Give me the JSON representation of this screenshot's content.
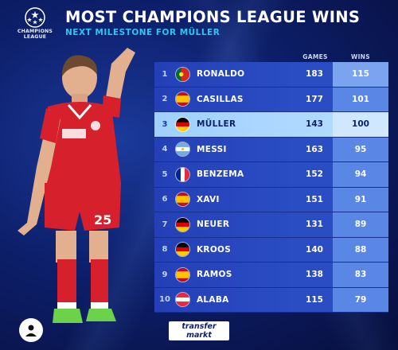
{
  "header": {
    "logo_text_line1": "CHAMPIONS",
    "logo_text_line2": "LEAGUE",
    "title": "MOST CHAMPIONS LEAGUE WINS",
    "subtitle": "NEXT MILESTONE FOR MÜLLER"
  },
  "columns": {
    "games": "GAMES",
    "wins": "WINS"
  },
  "rows": [
    {
      "rank": "1",
      "flag": "portugal-flag-icon",
      "name": "RONALDO",
      "games": "183",
      "wins": "115"
    },
    {
      "rank": "2",
      "flag": "spain-flag-icon",
      "name": "CASILLAS",
      "games": "177",
      "wins": "101"
    },
    {
      "rank": "3",
      "flag": "germany-flag-icon",
      "name": "MÜLLER",
      "games": "143",
      "wins": "100"
    },
    {
      "rank": "4",
      "flag": "argentina-flag-icon",
      "name": "MESSI",
      "games": "163",
      "wins": "95"
    },
    {
      "rank": "5",
      "flag": "france-flag-icon",
      "name": "BENZEMA",
      "games": "152",
      "wins": "94"
    },
    {
      "rank": "6",
      "flag": "spain-flag-icon",
      "name": "XAVI",
      "games": "151",
      "wins": "91"
    },
    {
      "rank": "7",
      "flag": "germany-flag-icon",
      "name": "NEUER",
      "games": "131",
      "wins": "89"
    },
    {
      "rank": "8",
      "flag": "germany-flag-icon",
      "name": "KROOS",
      "games": "140",
      "wins": "88"
    },
    {
      "rank": "9",
      "flag": "spain-flag-icon",
      "name": "RAMOS",
      "games": "138",
      "wins": "83"
    },
    {
      "rank": "10",
      "flag": "austria-flag-icon",
      "name": "ALABA",
      "games": "115",
      "wins": "79"
    }
  ],
  "highlight_rank": "3",
  "player": {
    "shirt_number": "25"
  },
  "brand": {
    "line1": "transfer",
    "line2": "markt"
  },
  "colors": {
    "background": "#0d1f6b",
    "row": "#2a4dc4",
    "wins_column": "#5a87e6",
    "highlight_row": "#b8ddff",
    "subtitle": "#29c7f2",
    "shirt": "#d6202c"
  },
  "icons": {
    "logo": "champions-league-starball-icon",
    "avatar": "user-avatar-icon"
  }
}
